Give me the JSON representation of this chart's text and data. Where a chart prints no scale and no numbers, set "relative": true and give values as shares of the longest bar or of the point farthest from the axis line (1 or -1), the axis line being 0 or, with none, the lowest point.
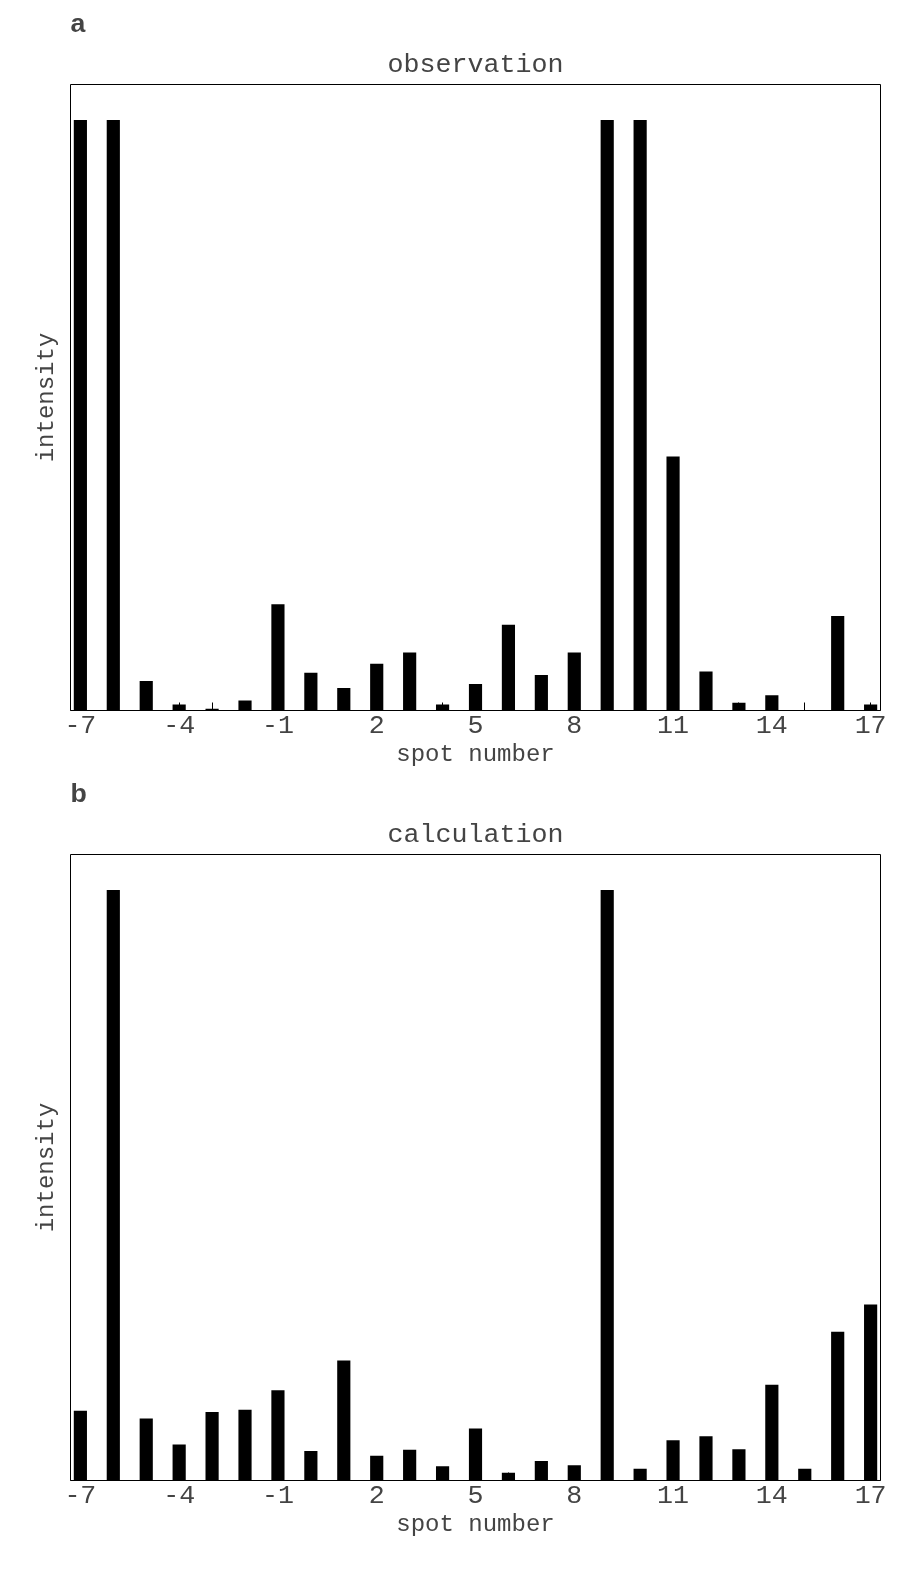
{
  "chart_data": [
    {
      "type": "bar",
      "title": "observation",
      "annotations": [
        "a"
      ],
      "xlabel": "spot number",
      "ylabel": "intensity",
      "relative": true,
      "grid": false,
      "categories": [
        "-7",
        null,
        null,
        "-4",
        null,
        null,
        "-1",
        null,
        null,
        "2",
        null,
        null,
        "5",
        null,
        null,
        "8",
        null,
        null,
        "11",
        null,
        null,
        "14",
        null,
        null,
        "17"
      ],
      "series": [
        {
          "color": "#000000",
          "values": [
            1,
            1,
            0.05,
            0.01,
            0.003,
            0.017,
            0.18,
            0.064,
            0.038,
            0.079,
            0.098,
            0.01,
            0.045,
            0.145,
            0.06,
            0.098,
            1,
            1,
            0.43,
            0.066,
            0.013,
            0.026,
            0,
            0.16,
            0.01
          ]
        }
      ]
    },
    {
      "type": "bar",
      "title": "calculation",
      "annotations": [
        "b"
      ],
      "xlabel": "spot number",
      "ylabel": "intensity",
      "relative": true,
      "grid": false,
      "categories": [
        "-7",
        null,
        null,
        "-4",
        null,
        null,
        "-1",
        null,
        null,
        "2",
        null,
        null,
        "5",
        null,
        null,
        "8",
        null,
        null,
        "11",
        null,
        null,
        "14",
        null,
        null,
        "17"
      ],
      "series": [
        {
          "color": "#000000",
          "values": [
            0.118,
            1,
            0.105,
            0.061,
            0.116,
            0.12,
            0.153,
            0.05,
            0.203,
            0.042,
            0.052,
            0.024,
            0.088,
            0.013,
            0.033,
            0.026,
            1,
            0.02,
            0.068,
            0.075,
            0.053,
            0.162,
            0.02,
            0.252,
            0.298
          ]
        }
      ]
    }
  ]
}
